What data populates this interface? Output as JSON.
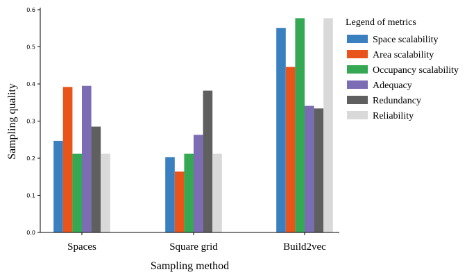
{
  "chart_data": {
    "type": "bar",
    "title": "",
    "xlabel": "Sampling method",
    "ylabel": "Sampling quality",
    "categories": [
      "Spaces",
      "Square grid",
      "Build2vec"
    ],
    "ylim": [
      0,
      0.6
    ],
    "yticks": [
      0.0,
      0.1,
      0.2,
      0.3,
      0.4,
      0.5,
      0.6
    ],
    "ytick_labels": [
      "0.0",
      "0.1",
      "0.2",
      "0.3",
      "0.4",
      "0.5",
      "0.6"
    ],
    "grid": false,
    "legend": {
      "title": "Legend of metrics",
      "placement": "outside-right"
    },
    "series": [
      {
        "name": "Space scalability",
        "color": "#3a7fbf",
        "values": [
          0.247,
          0.203,
          0.551
        ]
      },
      {
        "name": "Area scalability",
        "color": "#e8541a",
        "values": [
          0.392,
          0.164,
          0.446
        ]
      },
      {
        "name": "Occupancy scalability",
        "color": "#35a853",
        "values": [
          0.212,
          0.212,
          0.577
        ]
      },
      {
        "name": "Adequacy",
        "color": "#7b6cb3",
        "values": [
          0.395,
          0.263,
          0.341
        ]
      },
      {
        "name": "Redundancy",
        "color": "#5f5f5f",
        "values": [
          0.285,
          0.382,
          0.334
        ]
      },
      {
        "name": "Reliability",
        "color": "#d9d9d9",
        "values": [
          0.212,
          0.212,
          0.577
        ]
      }
    ]
  }
}
